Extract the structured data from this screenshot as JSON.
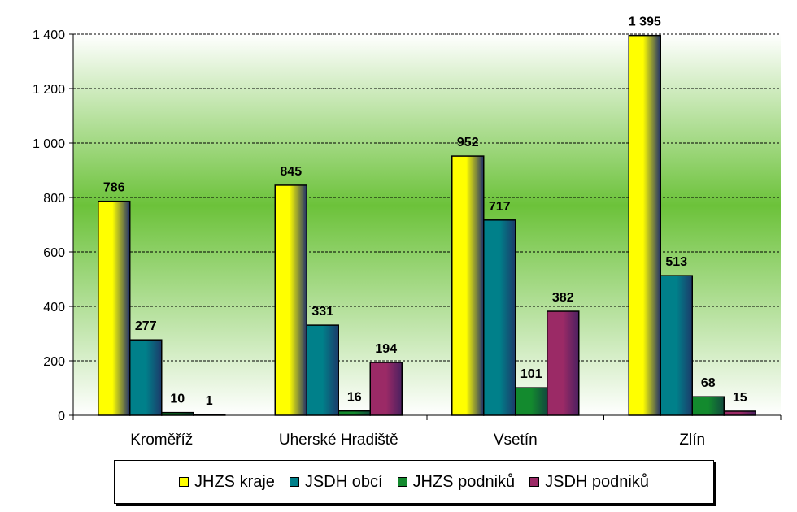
{
  "chart_data": {
    "type": "bar",
    "title": "",
    "xlabel": "",
    "ylabel": "",
    "ylim": [
      0,
      1400
    ],
    "yticks": [
      0,
      200,
      400,
      600,
      800,
      1000,
      1200,
      1400
    ],
    "ytick_labels": [
      "0",
      "200",
      "400",
      "600",
      "800",
      "1 000",
      "1 200",
      "1 400"
    ],
    "grid": true,
    "legend_position": "bottom",
    "categories": [
      "Kroměříž",
      "Uherské Hradiště",
      "Vsetín",
      "Zlín"
    ],
    "series": [
      {
        "name": "JHZS kraje",
        "color": "#ffff00",
        "values": [
          786,
          845,
          952,
          1395
        ],
        "labels": [
          "786",
          "845",
          "952",
          "1 395"
        ]
      },
      {
        "name": "JSDH obcí",
        "color": "#00808a",
        "values": [
          277,
          331,
          717,
          513
        ],
        "labels": [
          "277",
          "331",
          "717",
          "513"
        ]
      },
      {
        "name": "JHZS podniků",
        "color": "#138a2e",
        "values": [
          10,
          16,
          101,
          68
        ],
        "labels": [
          "10",
          "16",
          "101",
          "68"
        ]
      },
      {
        "name": "JSDH podniků",
        "color": "#9b2a66",
        "values": [
          1,
          194,
          382,
          15
        ],
        "labels": [
          "1",
          "194",
          "382",
          "15"
        ]
      }
    ]
  }
}
